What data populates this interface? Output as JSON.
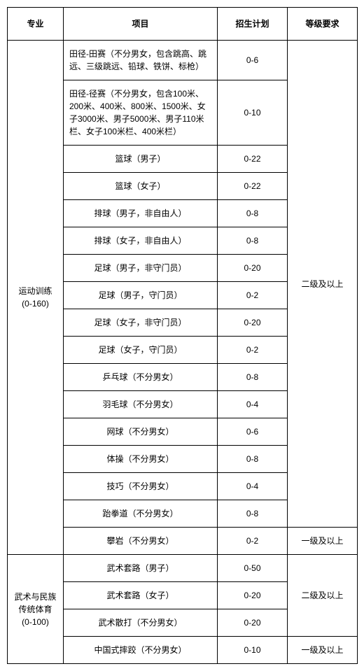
{
  "headers": {
    "major": "专业",
    "item": "项目",
    "plan": "招生计划",
    "req": "等级要求"
  },
  "majors": [
    {
      "name_l1": "运动训练",
      "name_l2": "(0-160)"
    },
    {
      "name_l1": "武术与民族",
      "name_l2": "传统体育",
      "name_l3": "(0-100)"
    }
  ],
  "reqs": {
    "lvl2": "二级及以上",
    "lvl1": "一级及以上"
  },
  "rows": {
    "r1": {
      "item": "田径-田赛（不分男女，包含跳高、跳远、三级跳远、铅球、铁饼、标枪）",
      "plan": "0-6"
    },
    "r2": {
      "item": "田径-径赛（不分男女，包含100米、200米、400米、800米、1500米、女子3000米、男子5000米、男子110米栏、女子100米栏、400米栏）",
      "plan": "0-10"
    },
    "r3": {
      "item": "篮球（男子）",
      "plan": "0-22"
    },
    "r4": {
      "item": "篮球（女子）",
      "plan": "0-22"
    },
    "r5": {
      "item": "排球（男子，非自由人）",
      "plan": "0-8"
    },
    "r6": {
      "item": "排球（女子，非自由人）",
      "plan": "0-8"
    },
    "r7": {
      "item": "足球（男子，非守门员）",
      "plan": "0-20"
    },
    "r8": {
      "item": "足球（男子，守门员）",
      "plan": "0-2"
    },
    "r9": {
      "item": "足球（女子，非守门员）",
      "plan": "0-20"
    },
    "r10": {
      "item": "足球（女子，守门员）",
      "plan": "0-2"
    },
    "r11": {
      "item": "乒乓球（不分男女）",
      "plan": "0-8"
    },
    "r12": {
      "item": "羽毛球（不分男女）",
      "plan": "0-4"
    },
    "r13": {
      "item": "网球（不分男女）",
      "plan": "0-6"
    },
    "r14": {
      "item": "体操（不分男女）",
      "plan": "0-8"
    },
    "r15": {
      "item": "技巧（不分男女）",
      "plan": "0-4"
    },
    "r16": {
      "item": "跆拳道（不分男女）",
      "plan": "0-8"
    },
    "r17": {
      "item": "攀岩（不分男女）",
      "plan": "0-2"
    },
    "r18": {
      "item": "武术套路（男子）",
      "plan": "0-50"
    },
    "r19": {
      "item": "武术套路（女子）",
      "plan": "0-20"
    },
    "r20": {
      "item": "武术散打（不分男女）",
      "plan": "0-20"
    },
    "r21": {
      "item": "中国式摔跤（不分男女）",
      "plan": "0-10"
    }
  }
}
